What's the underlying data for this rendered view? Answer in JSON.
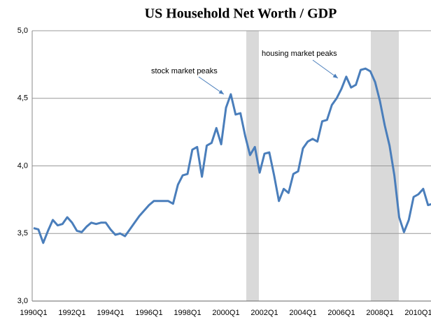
{
  "chart_data": {
    "type": "line",
    "title": "US Household Net Worth / GDP",
    "categories": [
      "1990Q1",
      null,
      null,
      null,
      null,
      null,
      null,
      null,
      "1992Q1",
      null,
      null,
      null,
      null,
      null,
      null,
      null,
      "1994Q1",
      null,
      null,
      null,
      null,
      null,
      null,
      null,
      "1996Q1",
      null,
      null,
      null,
      null,
      null,
      null,
      null,
      "1998Q1",
      null,
      null,
      null,
      null,
      null,
      null,
      null,
      "2000Q1",
      null,
      null,
      null,
      null,
      null,
      null,
      null,
      "2002Q1",
      null,
      null,
      null,
      null,
      null,
      null,
      null,
      "2004Q1",
      null,
      null,
      null,
      null,
      null,
      null,
      null,
      "2006Q1",
      null,
      null,
      null,
      null,
      null,
      null,
      null,
      "2008Q1",
      null,
      null,
      null,
      null,
      null,
      null,
      null,
      "2010Q1",
      null,
      null,
      null,
      null
    ],
    "series": [
      {
        "color": "#4a7ebb",
        "values": [
          3.54,
          3.53,
          3.43,
          3.52,
          3.6,
          3.56,
          3.57,
          3.62,
          3.58,
          3.52,
          3.51,
          3.55,
          3.58,
          3.57,
          3.58,
          3.58,
          3.53,
          3.49,
          3.5,
          3.48,
          3.53,
          3.58,
          3.63,
          3.67,
          3.71,
          3.74,
          3.74,
          3.74,
          3.74,
          3.72,
          3.86,
          3.93,
          3.94,
          4.12,
          4.14,
          3.92,
          4.15,
          4.17,
          4.28,
          4.16,
          4.43,
          4.53,
          4.38,
          4.39,
          4.22,
          4.08,
          4.14,
          3.95,
          4.09,
          4.1,
          3.93,
          3.74,
          3.83,
          3.8,
          3.94,
          3.96,
          4.13,
          4.18,
          4.2,
          4.18,
          4.33,
          4.34,
          4.45,
          4.5,
          4.57,
          4.66,
          4.58,
          4.6,
          4.71,
          4.72,
          4.7,
          4.62,
          4.48,
          4.3,
          4.15,
          3.93,
          3.62,
          3.51,
          3.6,
          3.77,
          3.79,
          3.83,
          3.71,
          3.72,
          3.84
        ]
      }
    ],
    "ylim": [
      3,
      5
    ],
    "yticks": [
      {
        "value": 3,
        "label": "3,0"
      },
      {
        "value": 3.5,
        "label": "3,5"
      },
      {
        "value": 4,
        "label": "4,0"
      },
      {
        "value": 4.5,
        "label": "4,5"
      },
      {
        "value": 5,
        "label": "5,0"
      }
    ],
    "grid": true,
    "annotations": [
      "stock market peaks",
      "housing market peaks"
    ]
  }
}
